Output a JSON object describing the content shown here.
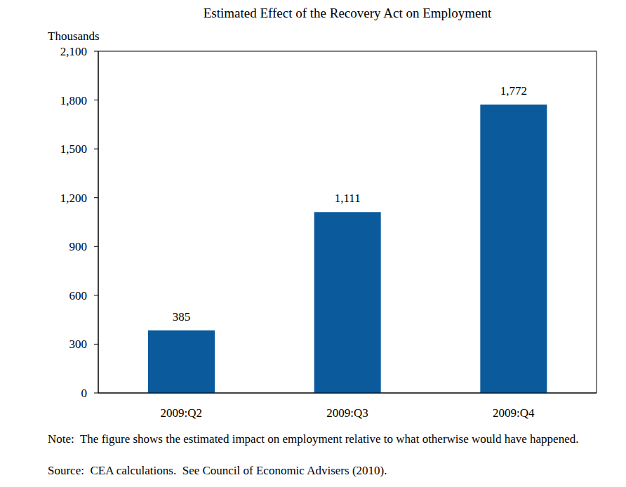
{
  "chart_data": {
    "type": "bar",
    "title": "Estimated Effect of the Recovery Act on Employment",
    "y_label": "Thousands",
    "categories": [
      "2009:Q2",
      "2009:Q3",
      "2009:Q4"
    ],
    "values": [
      385,
      1111,
      1772
    ],
    "value_labels": [
      "385",
      "1,111",
      "1,772"
    ],
    "color": "#0a5a9c",
    "ylim": [
      0,
      2100
    ],
    "yticks": [
      0,
      300,
      600,
      900,
      {
        "value": 1200,
        "label": "1,200"
      },
      {
        "value": 1500,
        "label": "1,500"
      },
      {
        "value": 1800,
        "label": "1,800"
      },
      {
        "value": 2100,
        "label": "2,100"
      }
    ],
    "grid": false,
    "data_labels": true,
    "note": "Note:  The figure shows the estimated impact on employment relative to what otherwise would have happened.",
    "source": "Source:  CEA calculations.  See Council of Economic Advisers (2010)."
  }
}
